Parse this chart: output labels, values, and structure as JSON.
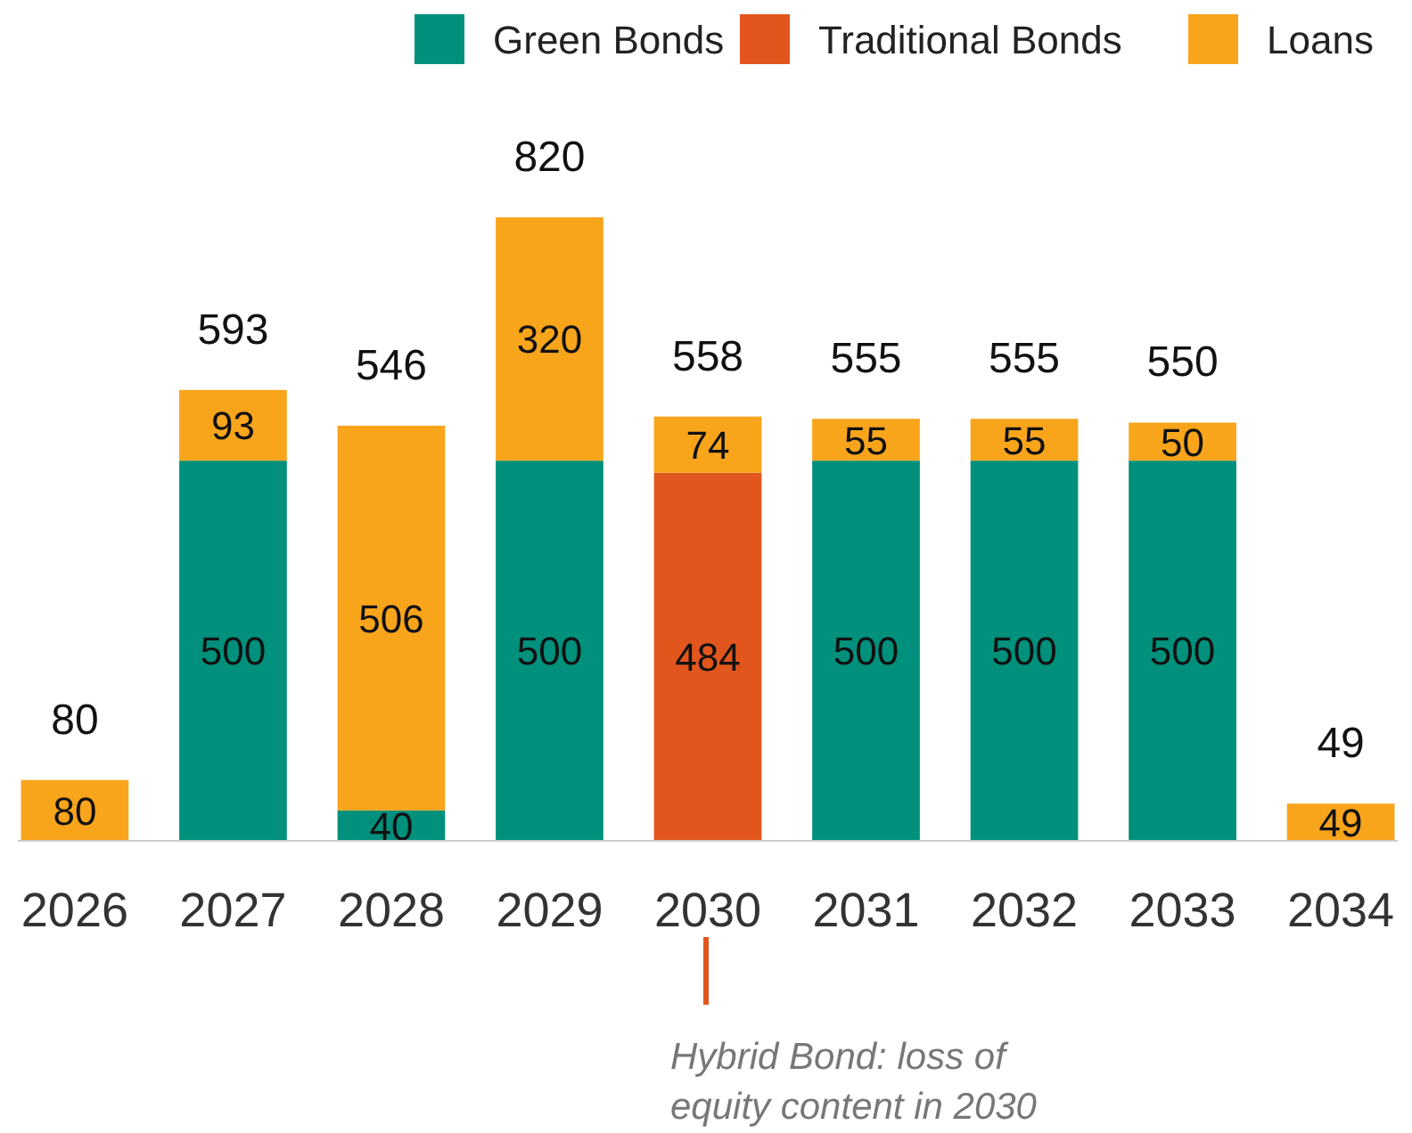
{
  "chart_data": {
    "type": "bar",
    "stacked": true,
    "categories": [
      "2026",
      "2027",
      "2028",
      "2029",
      "2030",
      "2031",
      "2032",
      "2033",
      "2034"
    ],
    "series": [
      {
        "name": "Green Bonds",
        "color": "#00907c",
        "values": [
          null,
          500,
          40,
          500,
          null,
          500,
          500,
          500,
          null
        ]
      },
      {
        "name": "Traditional Bonds",
        "color": "#e2561e",
        "values": [
          null,
          null,
          null,
          null,
          484,
          null,
          null,
          null,
          null
        ]
      },
      {
        "name": "Loans",
        "color": "#f8a51c",
        "values": [
          80,
          93,
          506,
          320,
          74,
          55,
          55,
          50,
          49
        ]
      }
    ],
    "data_labels": true,
    "totals": [
      "80",
      "593",
      "546",
      "820",
      "558",
      "555",
      "555",
      "550",
      "49"
    ],
    "legend": "top right",
    "annotations": [
      "Hybrid Bond: loss of equity content in 2030"
    ]
  }
}
